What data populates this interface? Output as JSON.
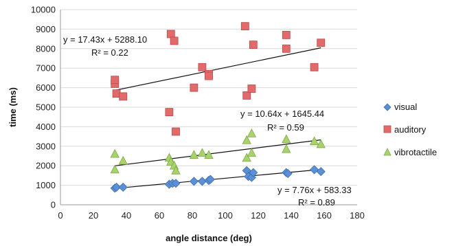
{
  "chart_data": {
    "type": "scatter",
    "title": "",
    "xlabel": "angle distance (deg)",
    "ylabel": "time (ms)",
    "xlim": [
      0,
      180
    ],
    "ylim": [
      0,
      10000
    ],
    "x_ticks": [
      "0",
      "20",
      "40",
      "60",
      "80",
      "100",
      "120",
      "140",
      "160",
      "180"
    ],
    "y_ticks": [
      "0",
      "1000",
      "2000",
      "3000",
      "4000",
      "5000",
      "6000",
      "7000",
      "8000",
      "9000",
      "10000"
    ],
    "grid": "horizontal",
    "legend_position": "right",
    "series": [
      {
        "name": "visual",
        "marker": "diamond",
        "color": "#5b8fd6",
        "points": [
          [
            33,
            850
          ],
          [
            34,
            900
          ],
          [
            38,
            900
          ],
          [
            66,
            1050
          ],
          [
            68,
            1100
          ],
          [
            70,
            1100
          ],
          [
            81,
            1200
          ],
          [
            86,
            1200
          ],
          [
            90,
            1250
          ],
          [
            91,
            1300
          ],
          [
            113,
            1750
          ],
          [
            114,
            1450
          ],
          [
            116,
            1400
          ],
          [
            117,
            1650
          ],
          [
            137,
            1650
          ],
          [
            138,
            1600
          ],
          [
            154,
            1800
          ],
          [
            158,
            1700
          ]
        ],
        "trendline": {
          "slope": 7.76,
          "intercept": 583.33,
          "equation": "y = 7.76x + 583.33",
          "r2": "R² = 0.89"
        }
      },
      {
        "name": "auditory",
        "marker": "square",
        "color": "#e36a6a",
        "points": [
          [
            33,
            6200
          ],
          [
            33,
            6400
          ],
          [
            34,
            5700
          ],
          [
            38,
            5550
          ],
          [
            66,
            4750
          ],
          [
            67,
            8750
          ],
          [
            69,
            8400
          ],
          [
            70,
            3750
          ],
          [
            81,
            6000
          ],
          [
            86,
            7050
          ],
          [
            90,
            6700
          ],
          [
            90,
            6600
          ],
          [
            112,
            9150
          ],
          [
            113,
            5600
          ],
          [
            116,
            5950
          ],
          [
            117,
            8200
          ],
          [
            137,
            8700
          ],
          [
            137,
            8000
          ],
          [
            154,
            7050
          ],
          [
            158,
            8300
          ]
        ],
        "trendline": {
          "slope": 17.43,
          "intercept": 5288.1,
          "equation": "y = 17.43x + 5288.10",
          "r2": "R² = 0.22"
        }
      },
      {
        "name": "vibrotactile",
        "marker": "triangle",
        "color": "#a8d26a",
        "points": [
          [
            33,
            2600
          ],
          [
            33,
            1800
          ],
          [
            38,
            2250
          ],
          [
            66,
            2400
          ],
          [
            67,
            2200
          ],
          [
            69,
            2000
          ],
          [
            70,
            1750
          ],
          [
            81,
            2550
          ],
          [
            86,
            2650
          ],
          [
            90,
            2550
          ],
          [
            113,
            3300
          ],
          [
            113,
            2400
          ],
          [
            116,
            3650
          ],
          [
            116,
            2650
          ],
          [
            137,
            3350
          ],
          [
            137,
            2850
          ],
          [
            154,
            3250
          ],
          [
            158,
            3100
          ]
        ],
        "trendline": {
          "slope": 10.64,
          "intercept": 1645.44,
          "equation": "y = 10.64x + 1645.44",
          "r2": "R² = 0.59"
        }
      }
    ]
  }
}
